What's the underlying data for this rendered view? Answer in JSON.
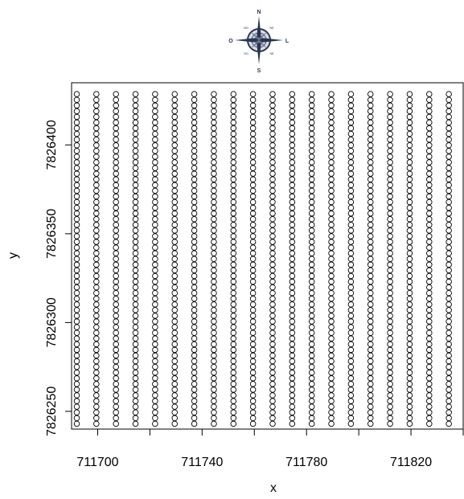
{
  "compass": {
    "n": "N",
    "s": "S",
    "o": "O",
    "l": "L",
    "no": "NO",
    "ne": "NE",
    "so": "SO",
    "se": "SE"
  },
  "chart_data": {
    "type": "scatter",
    "title": "",
    "xlabel": "x",
    "ylabel": "y",
    "xlim": [
      711690,
      711840
    ],
    "ylim": [
      7826240,
      7826435
    ],
    "xticks": [
      711700,
      711740,
      711780,
      711820
    ],
    "xtick_labels": [
      "711700",
      "711740",
      "711780",
      "711820"
    ],
    "yticks": [
      7826250,
      7826300,
      7826350,
      7826400
    ],
    "ytick_labels": [
      "7826250",
      "7826300",
      "7826350",
      "7826400"
    ],
    "grid": false,
    "legend": "none",
    "point_grid": {
      "x_start": 711692,
      "x_step": 7.5,
      "x_count": 20,
      "y_start": 7826243,
      "y_step": 3.2,
      "y_count": 59
    },
    "marker": "open-circle",
    "marker_color": "#000000"
  }
}
